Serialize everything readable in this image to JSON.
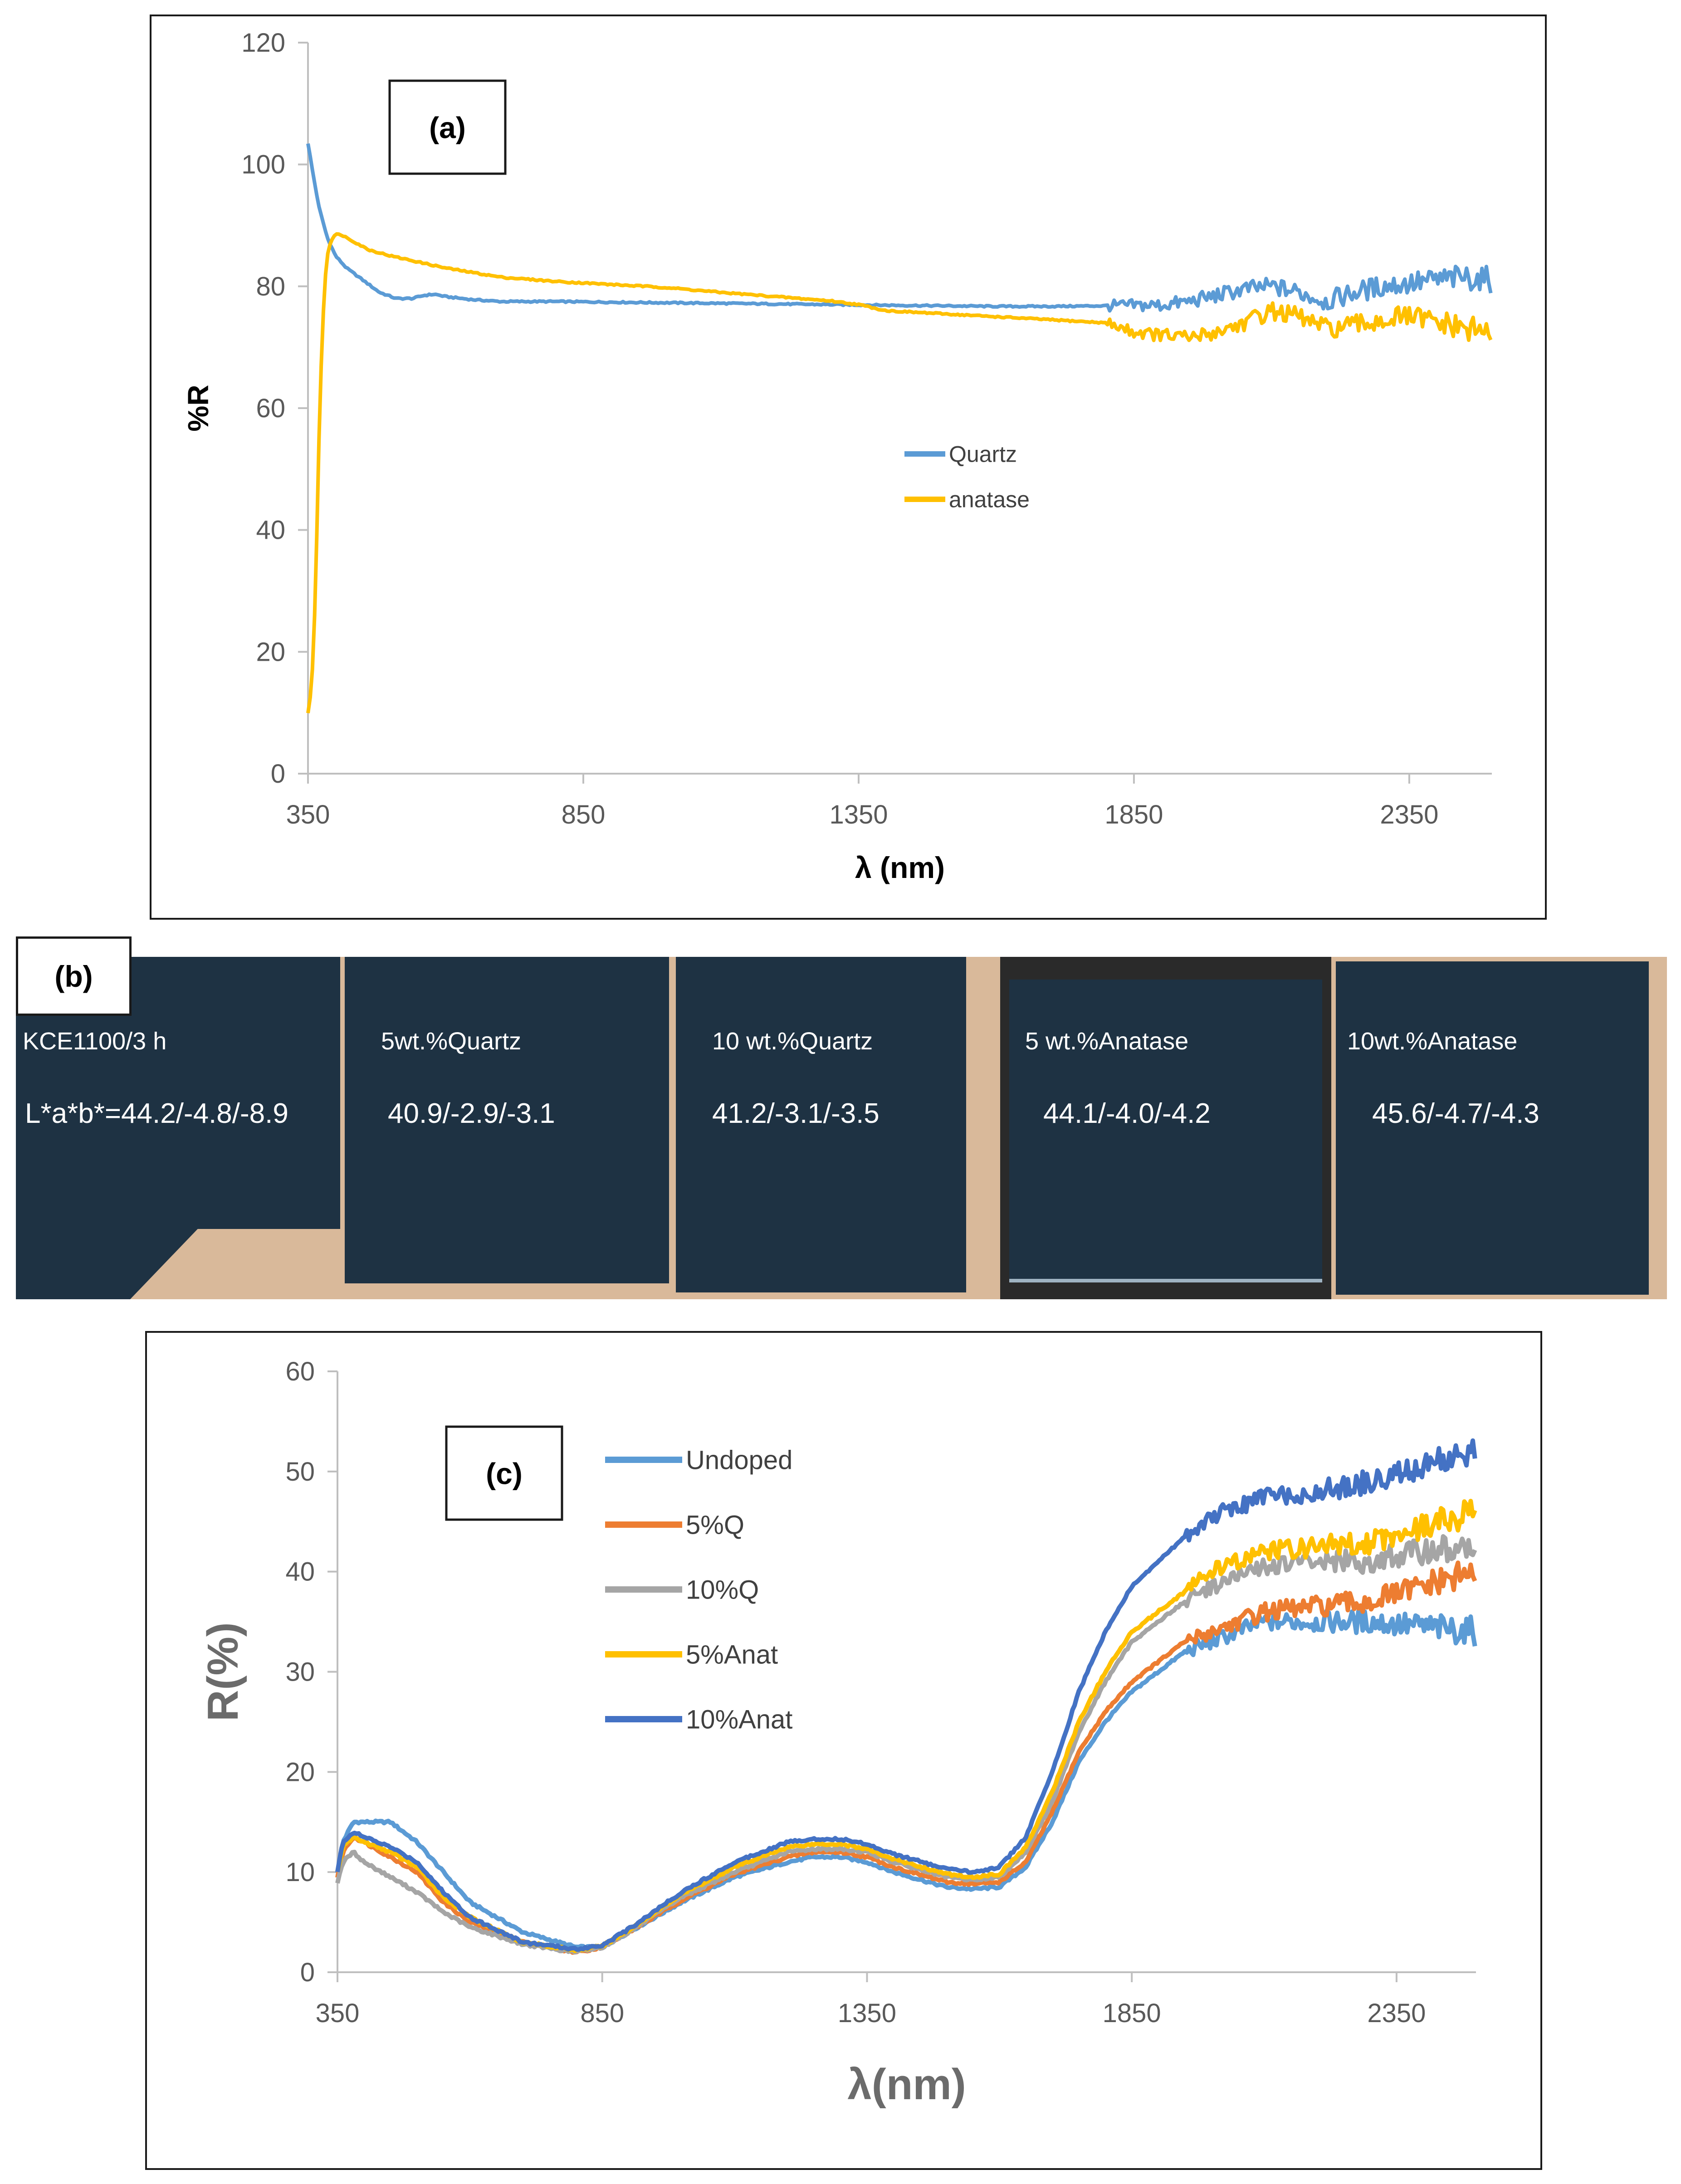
{
  "chart_data": [
    {
      "id": "a",
      "panel_label": "(a)",
      "type": "line",
      "xlabel": "λ (nm)",
      "ylabel": "%R",
      "xlim": [
        350,
        2500
      ],
      "ylim": [
        0,
        120
      ],
      "x_ticks": [
        350,
        850,
        1350,
        1850,
        2350
      ],
      "y_ticks": [
        0,
        20,
        40,
        60,
        80,
        100,
        120
      ],
      "legend_position": "center-right",
      "series": [
        {
          "name": "Quartz",
          "color": "#5b9bd5",
          "x": [
            350,
            360,
            370,
            385,
            400,
            420,
            450,
            480,
            510,
            540,
            560,
            580,
            600,
            650,
            700,
            800,
            900,
            1000,
            1100,
            1200,
            1300,
            1400,
            1500,
            1600,
            1700,
            1800,
            1900,
            1950,
            2000,
            2050,
            2100,
            2150,
            2200,
            2250,
            2300,
            2350,
            2400,
            2450,
            2500
          ],
          "y": [
            103.5,
            98,
            93,
            88,
            85,
            83,
            81,
            79,
            78,
            78,
            78.5,
            78.7,
            78.3,
            77.8,
            77.5,
            77.5,
            77.4,
            77.3,
            77.2,
            77.1,
            77,
            76.9,
            76.8,
            76.7,
            76.7,
            76.8,
            76.9,
            77.5,
            78.5,
            79.5,
            80,
            79,
            77.5,
            79,
            80,
            80.5,
            81,
            81.5,
            81
          ]
        },
        {
          "name": "anatase",
          "color": "#ffc000",
          "x": [
            350,
            355,
            360,
            365,
            370,
            375,
            380,
            385,
            390,
            395,
            400,
            410,
            420,
            440,
            460,
            500,
            550,
            600,
            700,
            800,
            900,
            1000,
            1100,
            1200,
            1300,
            1350,
            1400,
            1500,
            1600,
            1700,
            1800,
            1850,
            1900,
            1950,
            2000,
            2050,
            2100,
            2150,
            2200,
            2250,
            2300,
            2350,
            2400,
            2450,
            2500
          ],
          "y": [
            10,
            13,
            20,
            35,
            55,
            70,
            80,
            85,
            87,
            88,
            88.5,
            88.5,
            88,
            87,
            86,
            85,
            84,
            83,
            81.5,
            80.8,
            80.3,
            79.8,
            79,
            78.3,
            77.6,
            77,
            76,
            75.5,
            75,
            74.5,
            74,
            72.5,
            72,
            71.5,
            72.5,
            74,
            76,
            75,
            73,
            73.5,
            74.5,
            75,
            74,
            73,
            72.5
          ]
        }
      ]
    },
    {
      "id": "c",
      "panel_label": "(c)",
      "type": "line",
      "xlabel": "λ(nm)",
      "ylabel": "R(%)",
      "xlim": [
        350,
        2500
      ],
      "ylim": [
        0,
        60
      ],
      "x_ticks": [
        350,
        850,
        1350,
        1850,
        2350
      ],
      "y_ticks": [
        0,
        10,
        20,
        30,
        40,
        50,
        60
      ],
      "legend_position": "top-left",
      "series": [
        {
          "name": "Undoped",
          "color": "#5b9bd5",
          "x": [
            350,
            360,
            380,
            400,
            450,
            500,
            550,
            600,
            700,
            800,
            850,
            900,
            1000,
            1100,
            1200,
            1250,
            1300,
            1350,
            1400,
            1500,
            1550,
            1600,
            1650,
            1700,
            1750,
            1800,
            1850,
            1900,
            1950,
            2000,
            2100,
            2200,
            2300,
            2400,
            2500
          ],
          "y": [
            10,
            13,
            15,
            15,
            15,
            13,
            10,
            7,
            4,
            2.5,
            2.5,
            4,
            7,
            9.5,
            11,
            11.5,
            11.5,
            11,
            10,
            8.5,
            8.3,
            8.5,
            10.5,
            15,
            21,
            25,
            28,
            30,
            32,
            33,
            35,
            35,
            35,
            34.5,
            34
          ]
        },
        {
          "name": "5%Q",
          "color": "#ed7d31",
          "x": [
            350,
            360,
            380,
            400,
            450,
            500,
            550,
            600,
            700,
            800,
            850,
            900,
            1000,
            1100,
            1200,
            1250,
            1300,
            1350,
            1400,
            1500,
            1550,
            1600,
            1650,
            1700,
            1750,
            1800,
            1850,
            1900,
            1950,
            2000,
            2100,
            2200,
            2300,
            2400,
            2500
          ],
          "y": [
            9.5,
            12,
            13.5,
            13,
            11.5,
            10,
            7,
            5,
            3,
            2,
            2.5,
            4,
            7.2,
            9.8,
            11.5,
            12,
            12,
            11.5,
            10.5,
            9,
            8.8,
            9,
            11,
            16,
            22,
            26,
            29,
            31,
            33,
            34,
            36,
            36.5,
            37,
            38.5,
            40
          ]
        },
        {
          "name": "10%Q",
          "color": "#a5a5a5",
          "x": [
            350,
            360,
            380,
            400,
            450,
            500,
            550,
            600,
            700,
            800,
            850,
            900,
            1000,
            1100,
            1200,
            1250,
            1300,
            1350,
            1400,
            1500,
            1550,
            1600,
            1650,
            1700,
            1750,
            1800,
            1850,
            1900,
            1950,
            2000,
            2100,
            2200,
            2300,
            2400,
            2500
          ],
          "y": [
            9,
            11,
            12,
            11,
            9.5,
            8,
            6,
            4.5,
            2.8,
            2,
            2.5,
            4,
            7.5,
            10,
            12,
            12.3,
            12.3,
            12,
            11,
            9.5,
            9.2,
            9.5,
            12,
            17,
            24,
            29,
            33,
            35,
            37,
            38.5,
            40.5,
            41,
            41,
            42,
            42.5
          ]
        },
        {
          "name": "5%Anat",
          "color": "#ffc000",
          "x": [
            350,
            360,
            380,
            400,
            450,
            500,
            550,
            600,
            700,
            800,
            850,
            900,
            1000,
            1100,
            1200,
            1250,
            1300,
            1350,
            1400,
            1500,
            1550,
            1600,
            1650,
            1700,
            1750,
            1800,
            1850,
            1900,
            1950,
            2000,
            2100,
            2200,
            2300,
            2400,
            2500
          ],
          "y": [
            10,
            12.5,
            13.5,
            13,
            12,
            10.5,
            7.5,
            5.5,
            3,
            2.2,
            2.6,
            4.2,
            7.8,
            10.5,
            12.5,
            12.8,
            12.8,
            12.3,
            11.3,
            9.8,
            9.5,
            9.8,
            12.5,
            18,
            25,
            30,
            34,
            36,
            38,
            40,
            42,
            42.5,
            43,
            44.5,
            46
          ]
        },
        {
          "name": "10%Anat",
          "color": "#4472c4",
          "x": [
            350,
            360,
            380,
            400,
            450,
            500,
            550,
            600,
            700,
            800,
            850,
            900,
            1000,
            1100,
            1200,
            1250,
            1300,
            1350,
            1400,
            1500,
            1550,
            1600,
            1650,
            1700,
            1750,
            1800,
            1850,
            1900,
            1950,
            2000,
            2100,
            2200,
            2300,
            2400,
            2500
          ],
          "y": [
            10,
            13,
            14,
            13.5,
            12.5,
            11,
            8,
            5.5,
            3,
            2.3,
            2.7,
            4.3,
            8,
            11,
            13,
            13.3,
            13.3,
            12.8,
            11.8,
            10.3,
            10,
            10.5,
            13.5,
            20,
            28,
            34,
            38.5,
            41,
            43.5,
            45.5,
            47.5,
            48,
            49,
            50.5,
            52
          ]
        }
      ]
    }
  ],
  "panel_b": {
    "label": "(b)",
    "tiles": [
      {
        "name": "KCE1100/3 h",
        "lab": "L*a*b*=44.2/-4.8/-8.9"
      },
      {
        "name": "5wt.%Quartz",
        "lab": "40.9/-2.9/-3.1"
      },
      {
        "name": "10 wt.%Quartz",
        "lab": "41.2/-3.1/-3.5"
      },
      {
        "name": "5 wt.%Anatase",
        "lab": "44.1/-4.0/-4.2"
      },
      {
        "name": "10wt.%Anatase",
        "lab": "45.6/-4.7/-4.3"
      }
    ],
    "glaze_color": "#1e3243",
    "background_color": "#d9b99a"
  }
}
